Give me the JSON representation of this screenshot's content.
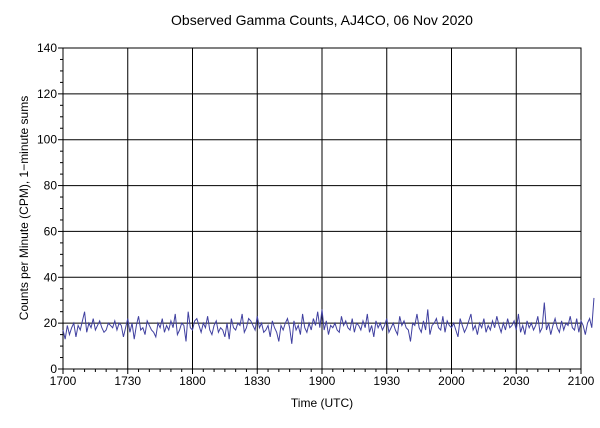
{
  "chart_data": {
    "type": "line",
    "title": "Observed Gamma Counts, AJ4CO, 06 Nov 2020",
    "xlabel": "Time (UTC)",
    "ylabel": "Counts per Minute (CPM), 1−minute sums",
    "x_ticks": [
      "1700",
      "1730",
      "1800",
      "1830",
      "1900",
      "1930",
      "2000",
      "2030",
      "2100"
    ],
    "y_ticks": [
      "0",
      "20",
      "40",
      "60",
      "80",
      "100",
      "120",
      "140"
    ],
    "xlim": [
      0,
      240
    ],
    "ylim": [
      0,
      140
    ],
    "grid": true,
    "line_color": "#4040a0",
    "series": [
      {
        "x_start_minute": 0,
        "x_step_minutes": 1,
        "values": [
          17,
          13,
          19,
          15,
          18,
          20,
          14,
          19,
          17,
          21,
          25,
          16,
          20,
          18,
          22,
          17,
          19,
          21,
          18,
          16,
          17,
          20,
          19,
          18,
          21,
          17,
          20,
          19,
          14,
          18,
          22,
          16,
          20,
          13,
          19,
          23,
          17,
          18,
          15,
          21,
          19,
          17,
          16,
          14,
          20,
          18,
          22,
          16,
          19,
          17,
          21,
          18,
          24,
          15,
          17,
          20,
          19,
          12,
          25,
          18,
          17,
          21,
          22,
          19,
          16,
          20,
          18,
          23,
          17,
          15,
          19,
          21,
          16,
          18,
          17,
          14,
          20,
          13,
          22,
          18,
          17,
          20,
          19,
          24,
          16,
          18,
          22,
          21,
          19,
          17,
          23,
          18,
          20,
          16,
          17,
          19,
          14,
          21,
          18,
          16,
          12,
          19,
          17,
          20,
          22,
          18,
          11,
          21,
          17,
          19,
          15,
          24,
          18,
          16,
          20,
          17,
          22,
          19,
          25,
          18,
          26,
          17,
          21,
          15,
          19,
          18,
          20,
          17,
          16,
          23,
          19,
          21,
          18,
          17,
          22,
          16,
          20,
          19,
          17,
          21,
          18,
          24,
          16,
          19,
          14,
          21,
          18,
          20,
          17,
          19,
          22,
          16,
          18,
          20,
          17,
          15,
          23,
          19,
          21,
          18,
          17,
          12,
          20,
          19,
          24,
          18,
          16,
          21,
          17,
          26,
          15,
          19,
          20,
          22,
          18,
          17,
          23,
          16,
          21,
          19,
          18,
          20,
          17,
          14,
          22,
          19,
          16,
          18,
          21,
          24,
          17,
          19,
          15,
          20,
          18,
          22,
          16,
          19,
          17,
          21,
          18,
          23,
          19,
          16,
          20,
          17,
          22,
          18,
          19,
          21,
          17,
          24,
          16,
          19,
          15,
          21,
          18,
          20,
          17,
          19,
          23,
          16,
          18,
          29,
          17,
          20,
          15,
          19,
          22,
          18,
          16,
          21,
          17,
          20,
          19,
          23,
          18,
          17,
          22,
          16,
          21,
          19,
          15,
          20,
          22,
          18,
          31
        ]
      }
    ]
  }
}
